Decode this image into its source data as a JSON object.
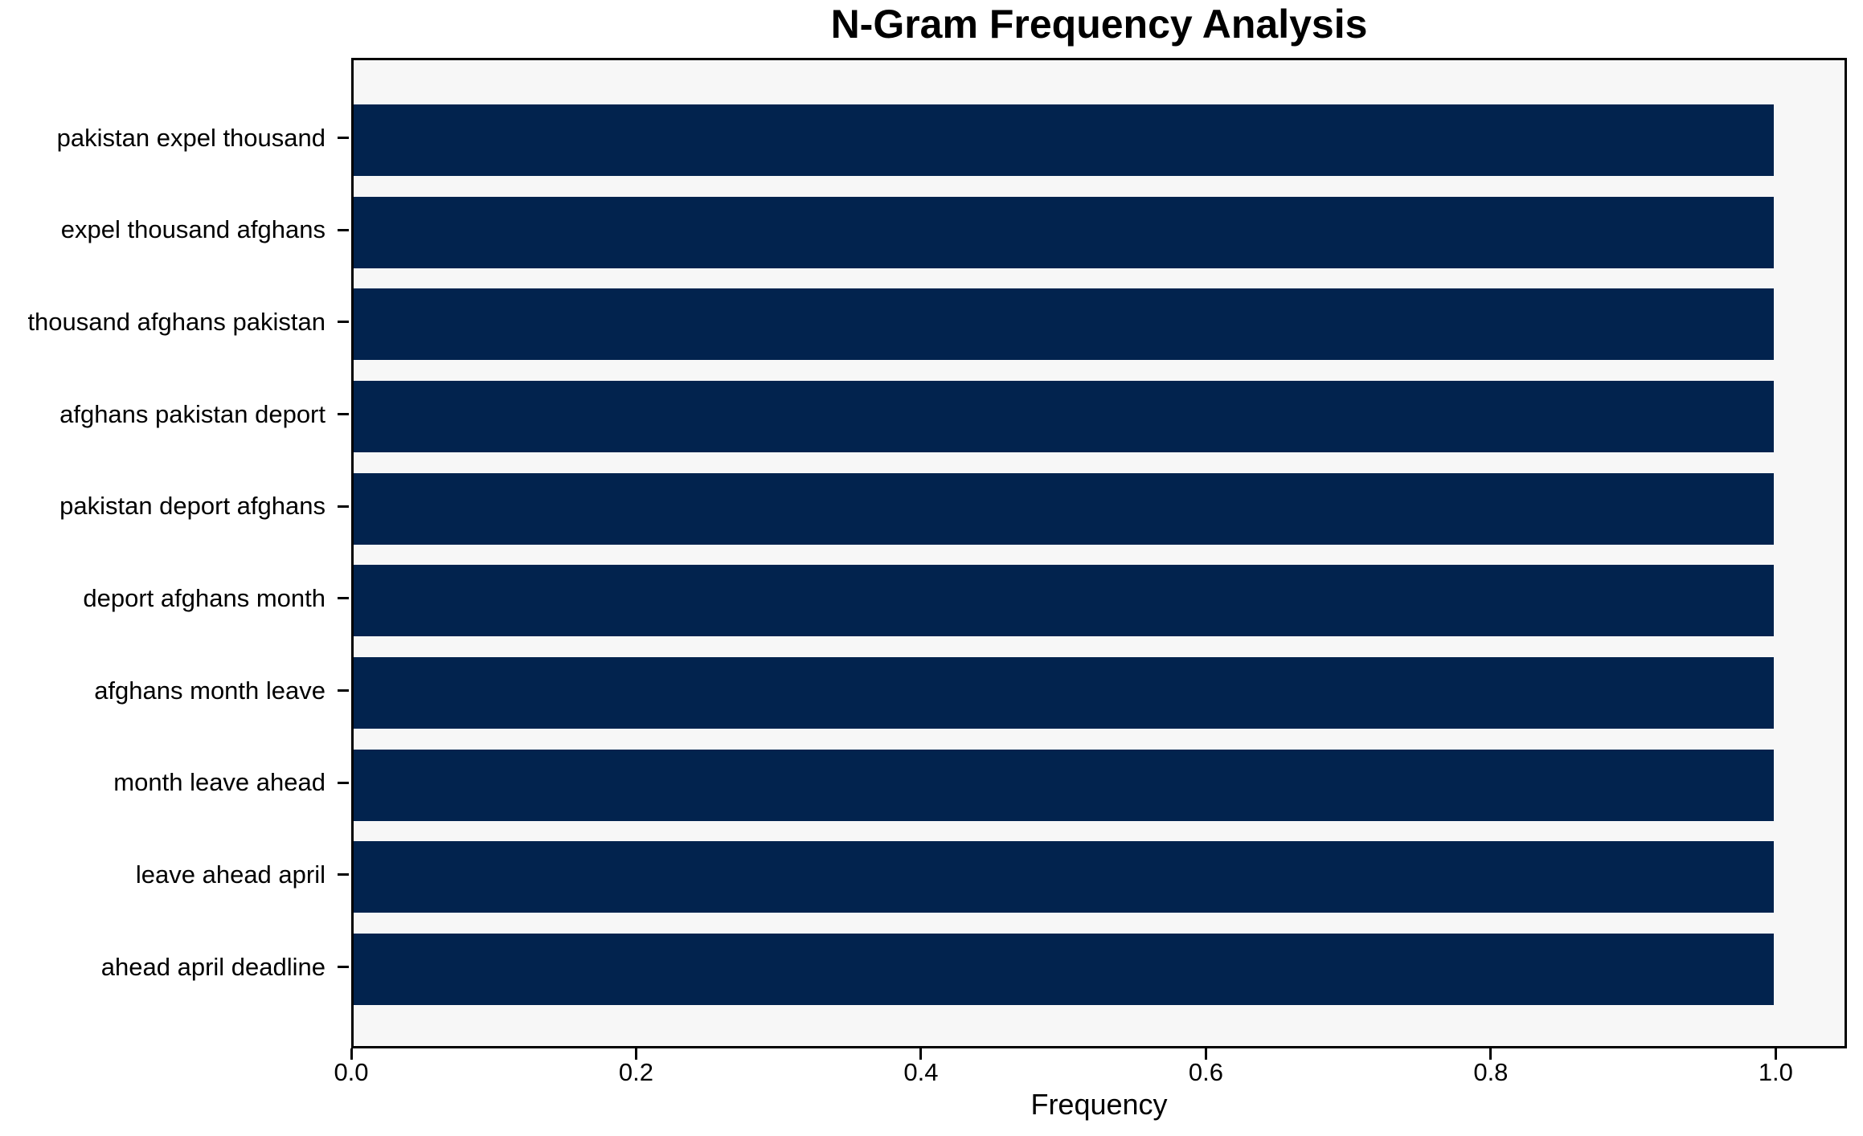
{
  "chart_data": {
    "type": "bar",
    "orientation": "horizontal",
    "title": "N-Gram Frequency Analysis",
    "xlabel": "Frequency",
    "ylabel": "",
    "categories": [
      "pakistan expel thousand",
      "expel thousand afghans",
      "thousand afghans pakistan",
      "afghans pakistan deport",
      "pakistan deport afghans",
      "deport afghans month",
      "afghans month leave",
      "month leave ahead",
      "leave ahead april",
      "ahead april deadline"
    ],
    "values": [
      1.0,
      1.0,
      1.0,
      1.0,
      1.0,
      1.0,
      1.0,
      1.0,
      1.0,
      1.0
    ],
    "xtick_labels": [
      "0.0",
      "0.2",
      "0.4",
      "0.6",
      "0.8",
      "1.0"
    ],
    "xlim": [
      0,
      1.05
    ],
    "grid": false,
    "legend": null,
    "colors": {
      "bar": "#02234e",
      "plot_background": "#f7f7f7",
      "figure_background": "#ffffff",
      "spine": "#000000",
      "text": "#000000"
    }
  }
}
